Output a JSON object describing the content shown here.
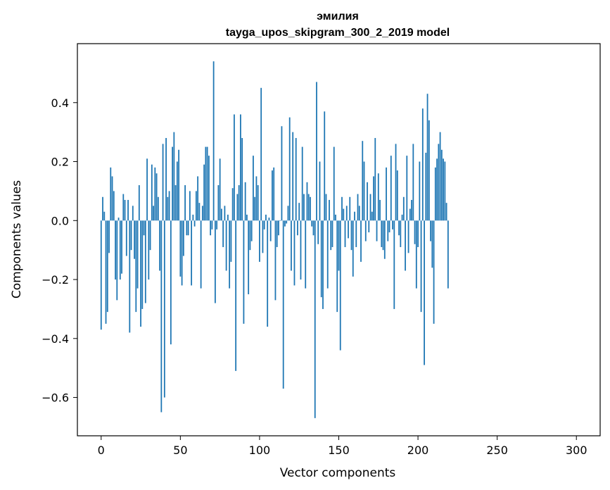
{
  "chart_data": {
    "type": "bar",
    "title": "эмилия",
    "subtitle": "tayga_upos_skipgram_300_2_2019 model",
    "xlabel": "Vector components",
    "ylabel": "Components values",
    "xlim": [
      -15,
      315
    ],
    "ylim": [
      -0.73,
      0.6
    ],
    "xticks": [
      0,
      50,
      100,
      150,
      200,
      250,
      300
    ],
    "xtick_labels": [
      "0",
      "50",
      "100",
      "150",
      "200",
      "250",
      "300"
    ],
    "yticks": [
      -0.6,
      -0.4,
      -0.2,
      0.0,
      0.2,
      0.4
    ],
    "ytick_labels": [
      "−0.6",
      "−0.4",
      "−0.2",
      "0.0",
      "0.2",
      "0.4"
    ],
    "grid": false,
    "bar_color": "#1f77b4",
    "x_start": 0,
    "values": [
      -0.37,
      0.08,
      0.03,
      -0.35,
      -0.31,
      -0.11,
      0.18,
      0.15,
      0.1,
      -0.2,
      -0.27,
      0.01,
      -0.2,
      -0.18,
      0.09,
      0.07,
      -0.12,
      0.07,
      -0.38,
      -0.1,
      0.05,
      -0.13,
      -0.31,
      -0.23,
      0.12,
      -0.36,
      -0.3,
      -0.05,
      -0.28,
      0.21,
      -0.2,
      -0.1,
      0.19,
      0.05,
      0.18,
      0.16,
      0.08,
      -0.17,
      -0.65,
      0.26,
      -0.6,
      0.28,
      0.08,
      0.1,
      -0.42,
      0.25,
      0.3,
      0.12,
      0.2,
      0.24,
      -0.19,
      -0.22,
      -0.12,
      0.12,
      -0.05,
      -0.05,
      0.1,
      -0.22,
      0.02,
      -0.02,
      0.1,
      0.15,
      0.06,
      -0.23,
      0.05,
      0.19,
      0.25,
      0.25,
      0.22,
      -0.05,
      -0.03,
      0.54,
      -0.28,
      -0.03,
      0.12,
      0.21,
      0.04,
      -0.09,
      0.05,
      -0.17,
      0.02,
      -0.23,
      -0.14,
      0.11,
      0.36,
      -0.51,
      0.09,
      0.12,
      0.36,
      0.28,
      -0.35,
      0.13,
      0.02,
      -0.25,
      -0.1,
      -0.07,
      0.22,
      0.08,
      0.15,
      0.12,
      -0.14,
      0.45,
      -0.11,
      -0.03,
      0.02,
      -0.36,
      0.01,
      -0.07,
      0.17,
      0.18,
      -0.27,
      -0.09,
      -0.05,
      0.0,
      0.32,
      -0.57,
      -0.02,
      -0.01,
      0.05,
      0.35,
      -0.17,
      0.3,
      -0.22,
      0.28,
      -0.05,
      0.06,
      -0.2,
      0.25,
      0.09,
      -0.23,
      0.13,
      0.09,
      0.08,
      -0.02,
      -0.05,
      -0.67,
      0.47,
      -0.08,
      0.2,
      -0.26,
      -0.3,
      0.37,
      0.09,
      -0.23,
      0.07,
      -0.1,
      -0.09,
      0.25,
      0.02,
      -0.31,
      -0.17,
      -0.44,
      0.08,
      0.04,
      -0.09,
      0.05,
      -0.06,
      0.08,
      -0.1,
      -0.19,
      0.03,
      -0.09,
      0.09,
      0.05,
      -0.14,
      0.27,
      0.2,
      -0.07,
      0.13,
      -0.04,
      0.09,
      0.03,
      0.15,
      0.28,
      -0.07,
      0.16,
      0.07,
      -0.09,
      -0.1,
      -0.13,
      0.18,
      -0.07,
      -0.04,
      0.22,
      -0.03,
      -0.3,
      0.26,
      0.17,
      -0.05,
      -0.09,
      0.02,
      0.08,
      -0.17,
      0.22,
      -0.11,
      0.04,
      0.07,
      0.26,
      -0.08,
      -0.23,
      -0.09,
      0.2,
      -0.31,
      0.38,
      -0.49,
      0.23,
      0.43,
      0.34,
      -0.07,
      -0.16,
      -0.35,
      0.18,
      0.21,
      0.26,
      0.3,
      0.24,
      0.21,
      0.2,
      0.06,
      -0.23
    ]
  }
}
